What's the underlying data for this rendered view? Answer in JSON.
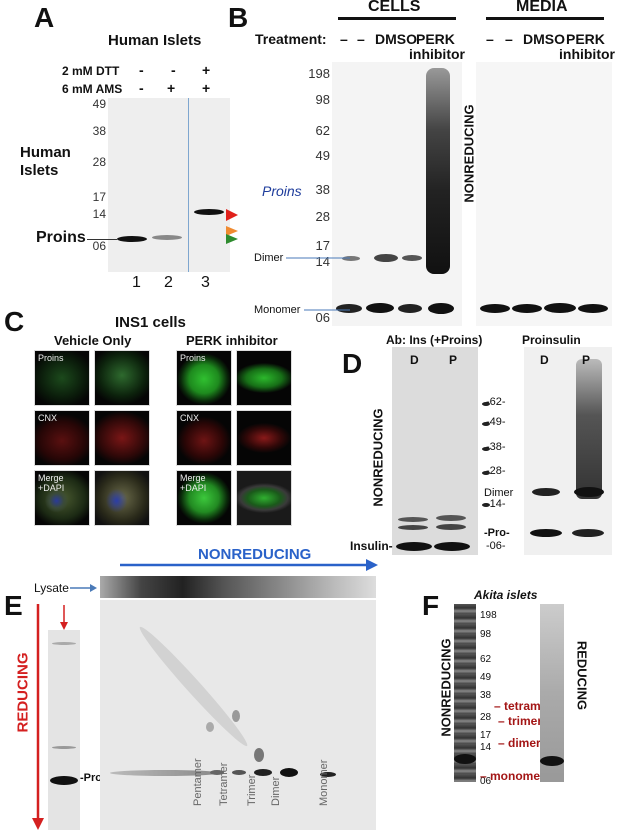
{
  "panels": {
    "A": {
      "letter": "A",
      "title": "Human Islets",
      "dtt_label": "2 mM DTT",
      "ams_label": "6 mM AMS",
      "dtt_signs": [
        "-",
        "-",
        "+"
      ],
      "ams_signs": [
        "-",
        "+",
        "+"
      ],
      "side_label": "Human\nIslets",
      "proins_label": "Proins",
      "mw": [
        "49",
        "38",
        "28",
        "17",
        "14",
        "06"
      ],
      "lanes": [
        "1",
        "2",
        "3"
      ],
      "arrow_colors": [
        "#e0201b",
        "#f08a30",
        "#2e8b2e"
      ]
    },
    "B": {
      "letter": "B",
      "cells_header": "CELLS",
      "media_header": "MEDIA",
      "treatment_label": "Treatment:",
      "cells_lanes": [
        "–",
        "–",
        "DMSO",
        "PERK",
        "inhibitor"
      ],
      "media_lanes": [
        "–",
        "–",
        "DMSO",
        "PERK",
        "inhibitor"
      ],
      "mw": [
        "198",
        "98",
        "62",
        "49",
        "38",
        "28",
        "17",
        "14",
        "06"
      ],
      "proins_label": "Proins",
      "proins_color": "#1f3d9c",
      "side_label": "NONREDUCING",
      "dimer_label": "Dimer",
      "monomer_label": "Monomer"
    },
    "C": {
      "letter": "C",
      "title": "INS1 cells",
      "left_header": "Vehicle Only",
      "right_header": "PERK inhibitor",
      "row_labels": [
        "Proins",
        "CNX",
        "Merge +DAPI"
      ]
    },
    "D": {
      "letter": "D",
      "ab_label": "Ab:  Ins (+Proins)",
      "right_header": "Proinsulin",
      "lanes_left": [
        "D",
        "P"
      ],
      "lanes_right": [
        "D",
        "P"
      ],
      "side_label": "NONREDUCING",
      "mw": [
        "-62-",
        "-49-",
        "-38-",
        "-28-",
        "-14-",
        "-06-"
      ],
      "dimer_label": "Dimer",
      "pro_label": "-Pro-",
      "insulin_label": "Insulin-"
    },
    "E": {
      "letter": "E",
      "top_label": "NONREDUCING",
      "top_color": "#2a62c9",
      "lysate_label": "Lysate",
      "side_label": "REDUCING",
      "side_color": "#d42020",
      "pro_label": "-Pro-",
      "species": [
        "Pentamer",
        "Tetramer",
        "Trimer",
        "Dimer",
        "Monomer"
      ]
    },
    "F": {
      "letter": "F",
      "title": "Akita islets",
      "left_side": "NONREDUCING",
      "right_side": "REDUCING",
      "mw": [
        "198",
        "98",
        "62",
        "49",
        "38",
        "28",
        "17",
        "14",
        "06"
      ],
      "annotations": [
        "– tetramer",
        "– trimer",
        "– dimer",
        "– monomer"
      ],
      "annotation_color": "#a31515"
    }
  }
}
